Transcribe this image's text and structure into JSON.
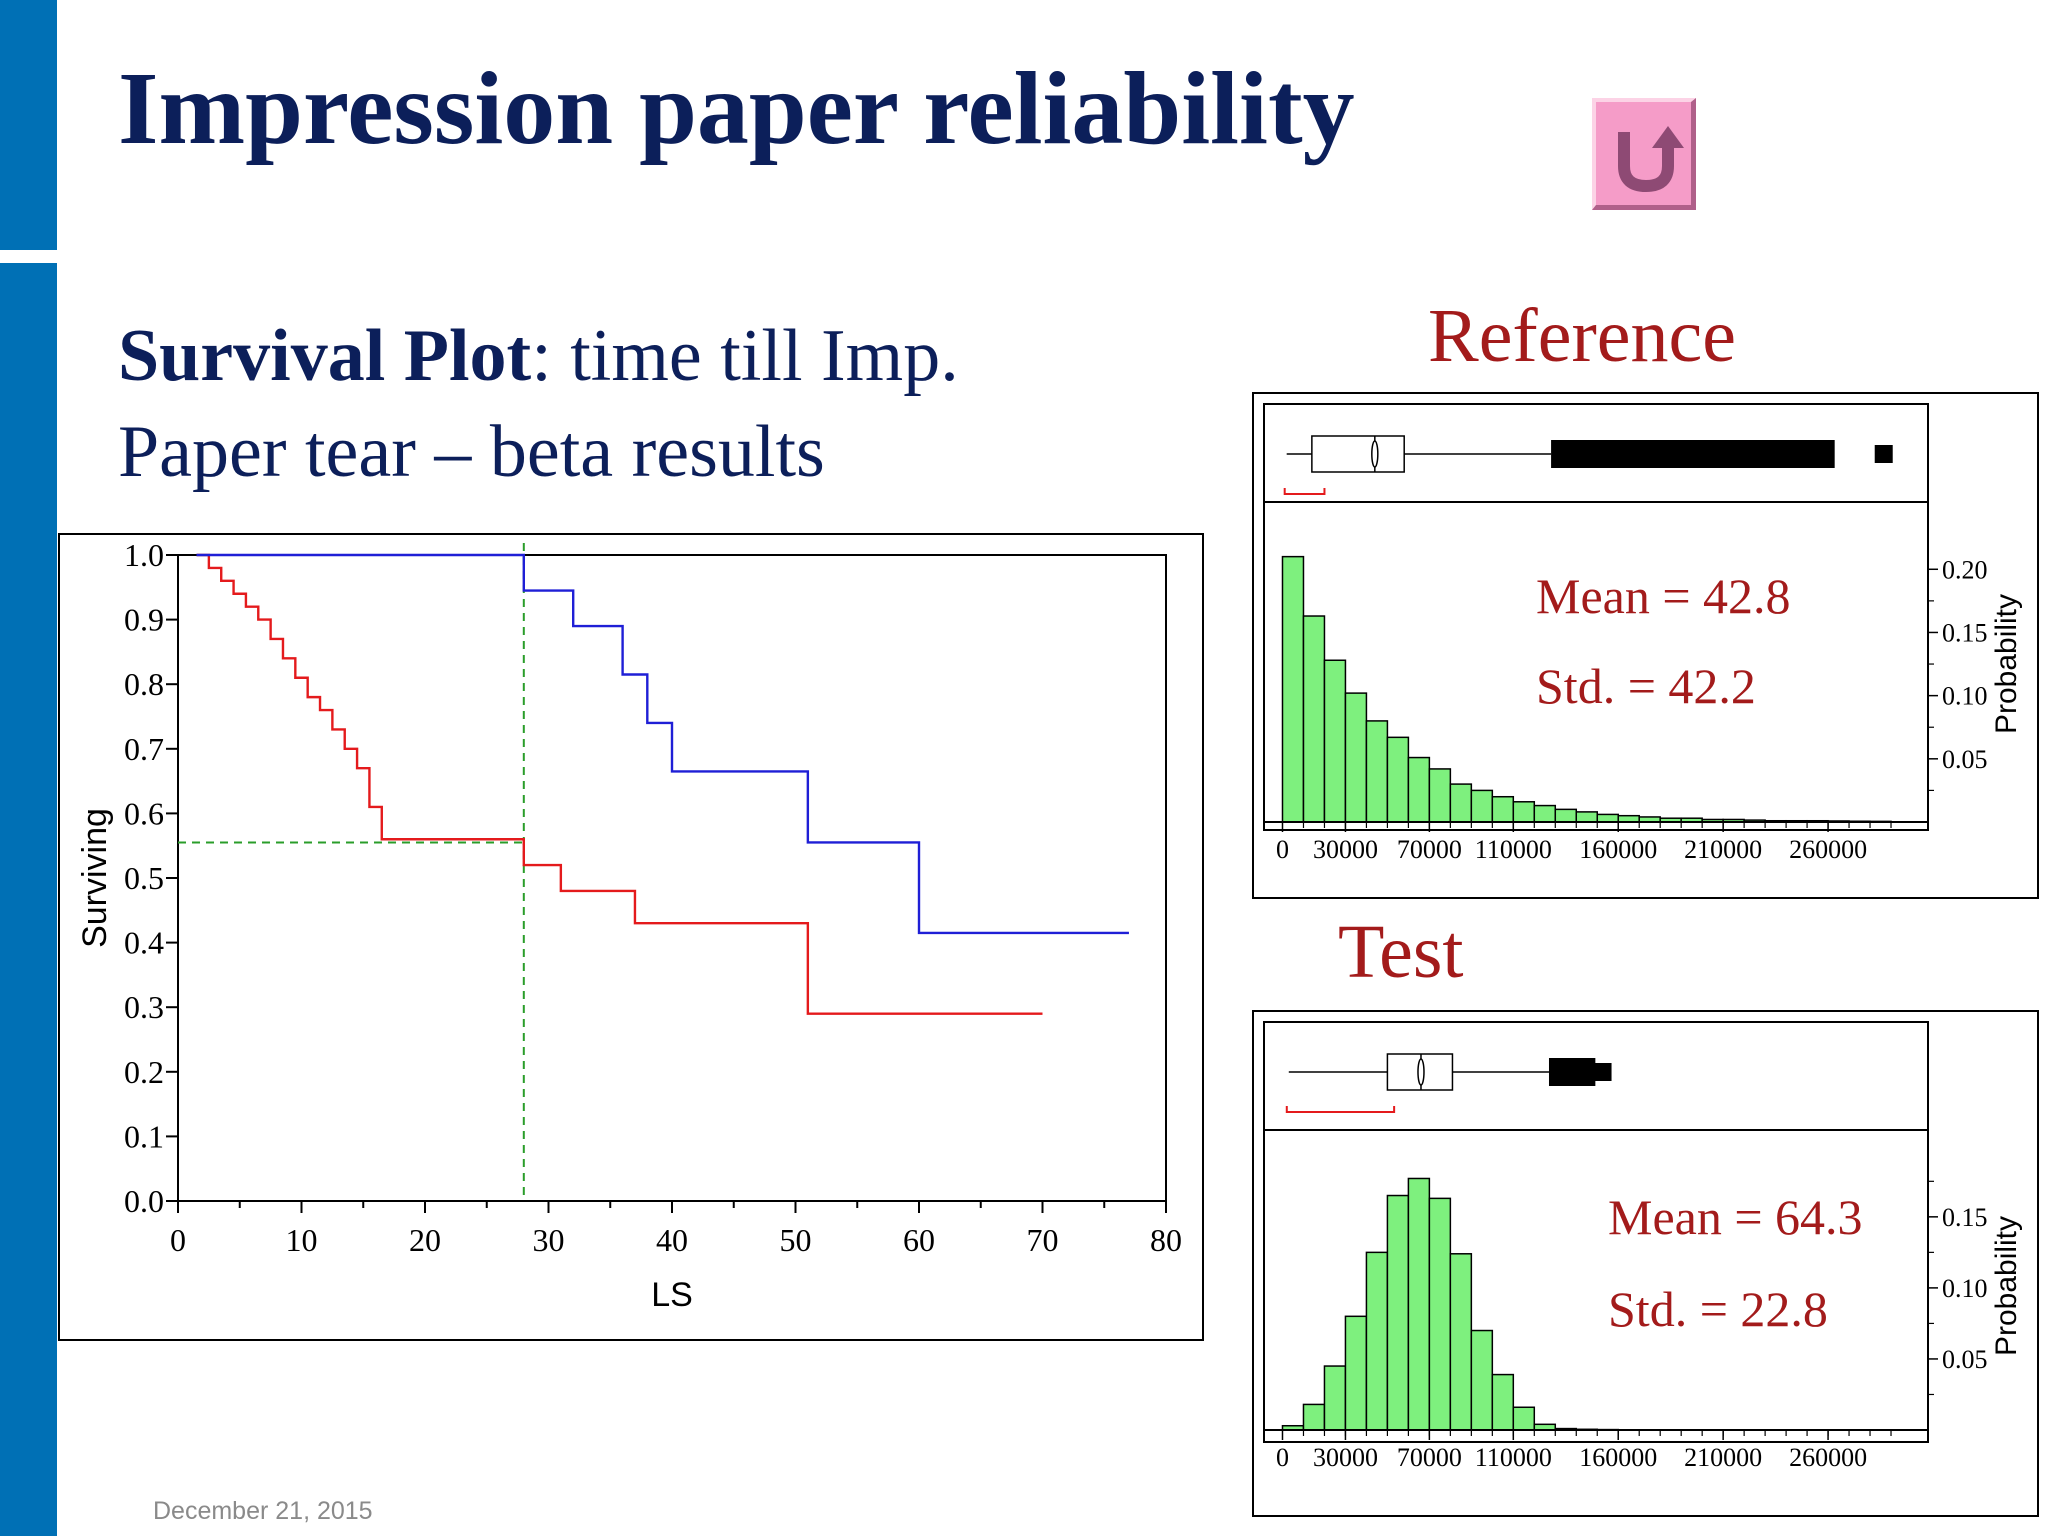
{
  "slide": {
    "title": "Impression paper reliability",
    "subtitle_bold": "Survival Plot",
    "subtitle_rest": ": time till Imp.",
    "subtitle_line2": "Paper tear – beta results",
    "reference_label": "Reference",
    "test_label": "Test",
    "footer_date": "December 21, 2015",
    "return_icon": "u-turn-arrow-icon",
    "colors": {
      "sidebar": "#0070b5",
      "title": "#0c1f5a",
      "accent_red": "#a31b1b",
      "hist_fill": "#7ef07e",
      "return_button": "#f59cc8"
    }
  },
  "chart_data": [
    {
      "type": "line",
      "subtype": "survival-step",
      "xlabel": "LS",
      "ylabel": "Surviving",
      "xlim": [
        0,
        80
      ],
      "ylim": [
        0,
        1
      ],
      "x_ticks": [
        0,
        10,
        20,
        30,
        40,
        50,
        60,
        70,
        80
      ],
      "y_ticks": [
        "0.0",
        "0.1",
        "0.2",
        "0.3",
        "0.4",
        "0.5",
        "0.6",
        "0.7",
        "0.8",
        "0.9",
        "1.0"
      ],
      "grid": false,
      "series": [
        {
          "color": "#e41a1c",
          "points": [
            [
              1.5,
              1.0
            ],
            [
              2.5,
              0.98
            ],
            [
              3.5,
              0.96
            ],
            [
              4.5,
              0.94
            ],
            [
              5.5,
              0.92
            ],
            [
              6.5,
              0.9
            ],
            [
              7.5,
              0.87
            ],
            [
              8.5,
              0.84
            ],
            [
              9.5,
              0.81
            ],
            [
              10.5,
              0.78
            ],
            [
              11.5,
              0.76
            ],
            [
              12.5,
              0.73
            ],
            [
              13.5,
              0.7
            ],
            [
              14.5,
              0.67
            ],
            [
              15.5,
              0.61
            ],
            [
              16.5,
              0.56
            ],
            [
              28.0,
              0.52
            ],
            [
              31.0,
              0.48
            ],
            [
              37.0,
              0.43
            ],
            [
              51.0,
              0.29
            ],
            [
              70.0,
              0.29
            ]
          ]
        },
        {
          "color": "#1f1fd6",
          "points": [
            [
              1.5,
              1.0
            ],
            [
              28.0,
              0.945
            ],
            [
              32.0,
              0.89
            ],
            [
              36.0,
              0.815
            ],
            [
              38.0,
              0.74
            ],
            [
              40.0,
              0.665
            ],
            [
              51.0,
              0.555
            ],
            [
              60.0,
              0.415
            ],
            [
              77.0,
              0.415
            ]
          ]
        }
      ],
      "reference_lines": [
        {
          "orientation": "vertical",
          "x": 28,
          "color": "#2a9d2a",
          "style": "dashed"
        },
        {
          "orientation": "horizontal",
          "y": 0.555,
          "color": "#2a9d2a",
          "style": "dashed"
        }
      ]
    },
    {
      "type": "bar",
      "subtype": "histogram-with-boxplot",
      "title": "Reference",
      "ylabel": "Probability",
      "x_tick_labels": [
        "0",
        "30000",
        "70000",
        "110000",
        "160000",
        "210000",
        "260000"
      ],
      "x_tick_values": [
        0,
        30000,
        70000,
        110000,
        160000,
        210000,
        260000
      ],
      "xlim": [
        -5000,
        300000
      ],
      "y_tick_labels": [
        "0.05",
        "0.10",
        "0.15",
        "0.20"
      ],
      "y_tick_values": [
        0.05,
        0.1,
        0.15,
        0.2
      ],
      "ylim": [
        0,
        0.22
      ],
      "bin_width": 10000,
      "bin_start": 0,
      "bars": [
        0.21,
        0.163,
        0.128,
        0.102,
        0.08,
        0.067,
        0.051,
        0.042,
        0.03,
        0.025,
        0.02,
        0.016,
        0.013,
        0.01,
        0.008,
        0.006,
        0.005,
        0.004,
        0.003,
        0.003,
        0.002,
        0.002,
        0.0015,
        0.001,
        0.001,
        0.001,
        0.0008,
        0.0006,
        0.0005
      ],
      "boxplot": {
        "whisker_low": 2000,
        "q1": 14000,
        "median": 44000,
        "q3": 58000,
        "whisker_high": 128000,
        "outliers_from": 128000,
        "outliers_to": 287000
      },
      "stats_mean": "Mean = 42.8",
      "stats_std": "Std. = 42.2"
    },
    {
      "type": "bar",
      "subtype": "histogram-with-boxplot",
      "title": "Test",
      "ylabel": "Probability",
      "x_tick_labels": [
        "0",
        "30000",
        "70000",
        "110000",
        "160000",
        "210000",
        "260000"
      ],
      "x_tick_values": [
        0,
        30000,
        70000,
        110000,
        160000,
        210000,
        260000
      ],
      "xlim": [
        -5000,
        300000
      ],
      "y_tick_labels": [
        "0.05",
        "0.10",
        "0.15"
      ],
      "y_tick_values": [
        0.05,
        0.1,
        0.15
      ],
      "ylim": [
        0,
        0.19
      ],
      "bin_width": 10000,
      "bin_start": 0,
      "bars": [
        0.003,
        0.018,
        0.045,
        0.08,
        0.125,
        0.165,
        0.177,
        0.163,
        0.124,
        0.07,
        0.039,
        0.016,
        0.004,
        0.001,
        0.0005,
        0.0003
      ],
      "boxplot": {
        "whisker_low": 3000,
        "q1": 50000,
        "median": 66000,
        "q3": 81000,
        "whisker_high": 127000,
        "outliers_from": 127000,
        "outliers_to": 153000
      },
      "stats_mean": "Mean = 64.3",
      "stats_std": "Std. = 22.8"
    }
  ]
}
